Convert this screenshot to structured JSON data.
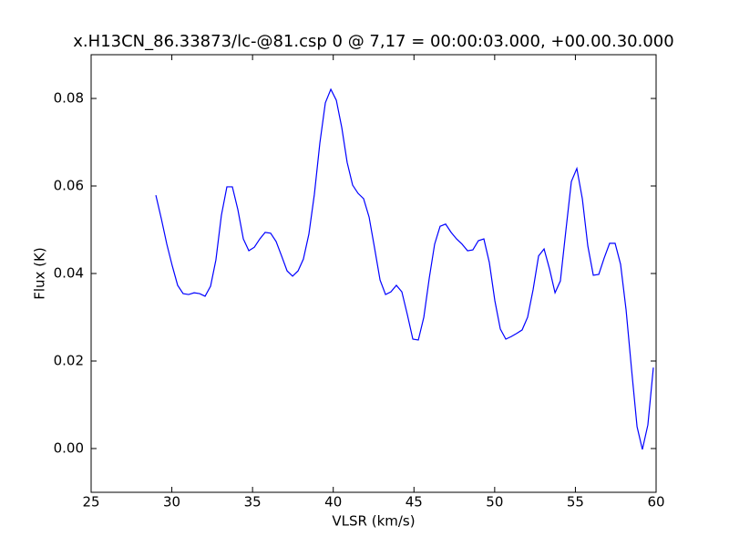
{
  "chart_data": {
    "type": "line",
    "title": "x.H13CN_86.33873/lc-@81.csp 0 @ 7,17 = 00:00:03.000, +00.00.30.000",
    "x_label": "VLSR (km/s)",
    "y_label": "Flux (K)",
    "x": [
      29.01,
      29.35,
      29.69,
      30.03,
      30.36,
      30.7,
      31.04,
      31.38,
      31.72,
      32.06,
      32.4,
      32.73,
      33.07,
      33.41,
      33.75,
      34.09,
      34.43,
      34.77,
      35.11,
      35.45,
      35.78,
      36.12,
      36.46,
      36.8,
      37.14,
      37.48,
      37.82,
      38.15,
      38.49,
      38.83,
      39.17,
      39.51,
      39.85,
      40.19,
      40.53,
      40.86,
      41.2,
      41.54,
      41.88,
      42.22,
      42.56,
      42.9,
      43.24,
      43.57,
      43.91,
      44.25,
      44.59,
      44.93,
      45.27,
      45.61,
      45.95,
      46.28,
      46.62,
      46.96,
      47.3,
      47.64,
      47.98,
      48.32,
      48.65,
      48.99,
      49.33,
      49.67,
      50.01,
      50.35,
      50.69,
      51.03,
      51.36,
      51.7,
      52.04,
      52.38,
      52.72,
      53.06,
      53.4,
      53.74,
      54.07,
      54.41,
      54.75,
      55.09,
      55.43,
      55.77,
      56.11,
      56.45,
      56.78,
      57.12,
      57.46,
      57.8,
      58.14,
      58.48,
      58.82,
      59.15,
      59.49,
      59.83
    ],
    "series": [
      {
        "color": "#0000ff",
        "values": [
          0.0579,
          0.0525,
          0.0467,
          0.0417,
          0.0373,
          0.0354,
          0.0352,
          0.0356,
          0.0354,
          0.0348,
          0.0371,
          0.0431,
          0.0533,
          0.0598,
          0.0598,
          0.0546,
          0.0479,
          0.0452,
          0.046,
          0.0479,
          0.0494,
          0.0492,
          0.0473,
          0.044,
          0.0406,
          0.0394,
          0.0406,
          0.0433,
          0.049,
          0.0581,
          0.0698,
          0.079,
          0.0821,
          0.0796,
          0.0733,
          0.0654,
          0.0602,
          0.0583,
          0.0571,
          0.0529,
          0.0458,
          0.0385,
          0.0352,
          0.0358,
          0.0373,
          0.0358,
          0.0306,
          0.025,
          0.0248,
          0.03,
          0.039,
          0.0467,
          0.0508,
          0.0513,
          0.0494,
          0.0479,
          0.0467,
          0.0452,
          0.0454,
          0.0475,
          0.0479,
          0.0425,
          0.0338,
          0.0273,
          0.025,
          0.0256,
          0.0263,
          0.0271,
          0.03,
          0.0363,
          0.044,
          0.0456,
          0.041,
          0.0356,
          0.0383,
          0.0498,
          0.061,
          0.064,
          0.0571,
          0.0463,
          0.0396,
          0.0398,
          0.0435,
          0.0469,
          0.0469,
          0.0421,
          0.0317,
          0.0181,
          0.005,
          -0.0002,
          0.0054,
          0.0185
        ]
      }
    ],
    "xlim": [
      25,
      60
    ],
    "ylim": [
      -0.01,
      0.09
    ],
    "xticks": [
      25,
      30,
      35,
      40,
      45,
      50,
      55,
      60
    ],
    "yticks": [
      {
        "value": 0,
        "label": "0.00"
      },
      0.02,
      0.04,
      0.06,
      0.08
    ]
  }
}
